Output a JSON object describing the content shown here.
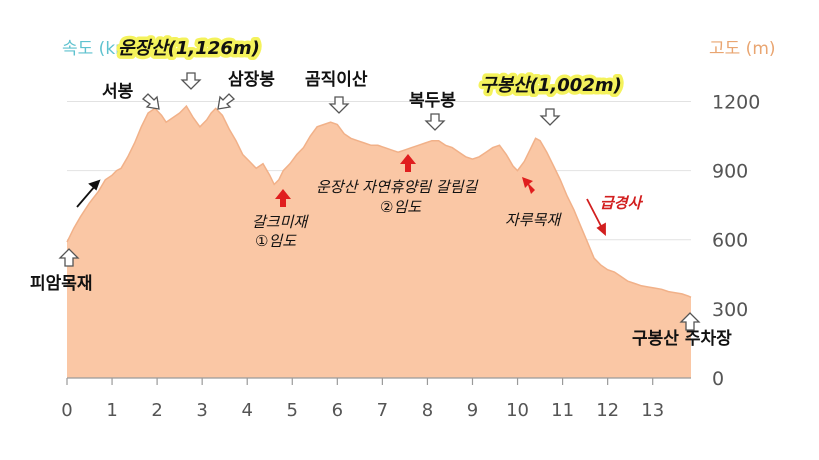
{
  "left_axis_label": "속도 (km/h)",
  "right_axis_label": "고도 (m)",
  "colors": {
    "fill": "#fac7a5",
    "outline": "#f1b189",
    "grid": "#e2e2e2",
    "arrow_up_red": "#e01e1e",
    "steep_red": "#d21f1f",
    "highlight": "#f4f25c"
  },
  "chart_data": {
    "type": "area",
    "xlabel": "",
    "ylabel": "고도 (m)",
    "x_ticks": [
      "0",
      "1",
      "2",
      "3",
      "4",
      "5",
      "6",
      "7",
      "8",
      "9",
      "10",
      "11",
      "12",
      "13"
    ],
    "y_ticks": [
      "0",
      "300",
      "600",
      "900",
      "1200"
    ],
    "xlim": [
      0,
      13.85
    ],
    "ylim": [
      0,
      1380
    ],
    "grid": "horizontal",
    "series": [
      {
        "x": [
          0,
          0.05,
          0.15,
          0.3,
          0.5,
          0.7,
          0.85,
          1.0,
          1.1,
          1.2,
          1.35,
          1.5,
          1.65,
          1.8,
          1.95,
          2.1,
          2.2,
          2.35,
          2.5,
          2.65,
          2.8,
          2.95,
          3.1,
          3.2,
          3.3,
          3.45,
          3.6,
          3.75,
          3.9,
          4.05,
          4.2,
          4.35,
          4.5,
          4.6,
          4.7,
          4.8,
          4.95,
          5.1,
          5.25,
          5.4,
          5.55,
          5.7,
          5.85,
          6.0,
          6.15,
          6.3,
          6.45,
          6.6,
          6.75,
          6.9,
          7.05,
          7.2,
          7.35,
          7.5,
          7.65,
          7.8,
          7.95,
          8.1,
          8.25,
          8.4,
          8.55,
          8.7,
          8.85,
          9.0,
          9.15,
          9.3,
          9.45,
          9.6,
          9.75,
          9.9,
          10.0,
          10.15,
          10.3,
          10.4,
          10.5,
          10.65,
          10.8,
          10.95,
          11.1,
          11.25,
          11.4,
          11.55,
          11.7,
          11.85,
          12.0,
          12.15,
          12.3,
          12.45,
          12.6,
          12.75,
          12.9,
          13.05,
          13.2,
          13.35,
          13.5,
          13.65,
          13.8,
          13.85
        ],
        "values": [
          590,
          610,
          650,
          700,
          760,
          810,
          860,
          880,
          900,
          910,
          960,
          1020,
          1090,
          1150,
          1170,
          1140,
          1110,
          1130,
          1150,
          1180,
          1130,
          1090,
          1120,
          1150,
          1170,
          1140,
          1080,
          1030,
          970,
          940,
          910,
          930,
          880,
          840,
          860,
          900,
          930,
          970,
          1000,
          1050,
          1090,
          1100,
          1110,
          1100,
          1060,
          1040,
          1030,
          1020,
          1010,
          1010,
          1000,
          990,
          980,
          990,
          1000,
          1010,
          1020,
          1030,
          1030,
          1010,
          1000,
          980,
          960,
          950,
          960,
          980,
          1000,
          1010,
          970,
          920,
          900,
          940,
          1000,
          1040,
          1030,
          980,
          920,
          860,
          790,
          730,
          660,
          590,
          520,
          490,
          470,
          460,
          440,
          420,
          410,
          400,
          395,
          390,
          385,
          375,
          370,
          365,
          355,
          350
        ]
      }
    ],
    "annotations": {
      "peak1": "운장산(1,126m)",
      "peak2": "구봉산(1,002m)",
      "seobong": "서봉",
      "samjangbong": "삼장봉",
      "gogjikisan": "곰직이산",
      "bokdubong": "복두봉",
      "start": "피암목재",
      "galkumi1": "갈크미재",
      "galkumi2": "①임도",
      "forest1": "운장산 자연휴양림 갈림길",
      "forest2": "②임도",
      "jarumok": "자루목재",
      "steep": "급경사",
      "end": "구봉산 주차장"
    }
  }
}
